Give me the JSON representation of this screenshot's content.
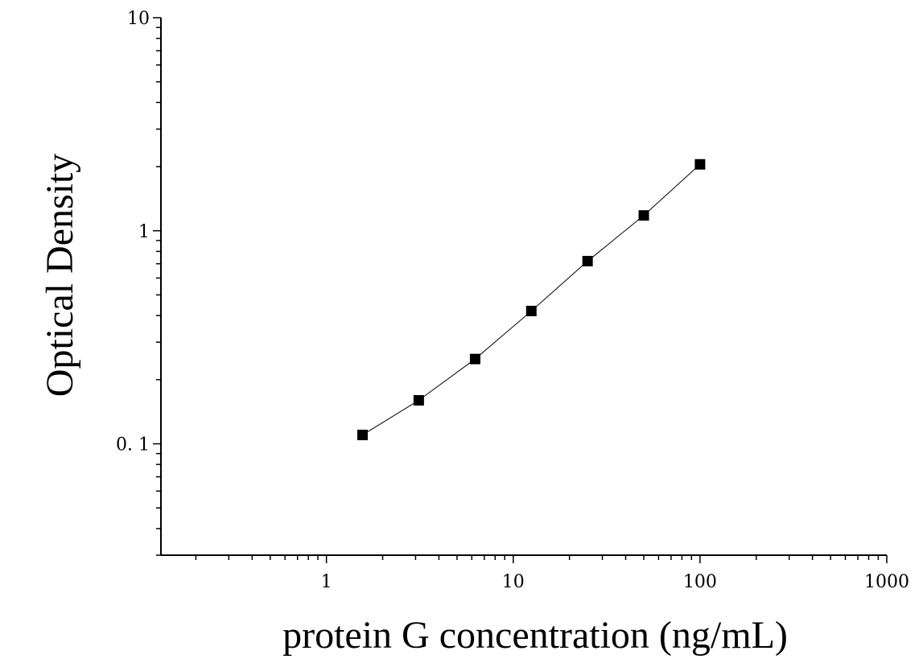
{
  "chart_data": {
    "type": "scatter",
    "title": "",
    "xlabel": "protein G concentration (ng/mL)",
    "ylabel": "Optical Density",
    "xscale": "log",
    "yscale": "log",
    "xlim": [
      0.13,
      1000
    ],
    "ylim": [
      0.03,
      10
    ],
    "x_ticks": [
      {
        "value": 1,
        "label": "1"
      },
      {
        "value": 10,
        "label": "10"
      },
      {
        "value": 100,
        "label": "100"
      },
      {
        "value": 1000,
        "label": "1000"
      }
    ],
    "y_ticks": [
      {
        "value": 0.1,
        "label": "0. 1"
      },
      {
        "value": 1,
        "label": "1"
      },
      {
        "value": 10,
        "label": "10"
      }
    ],
    "grid": false,
    "series": [
      {
        "x": [
          1.56,
          3.12,
          6.25,
          12.5,
          25,
          50,
          100
        ],
        "y": [
          0.11,
          0.16,
          0.25,
          0.42,
          0.72,
          1.18,
          2.05
        ],
        "marker": "square",
        "color": "#000000",
        "fit_line": true
      }
    ]
  }
}
